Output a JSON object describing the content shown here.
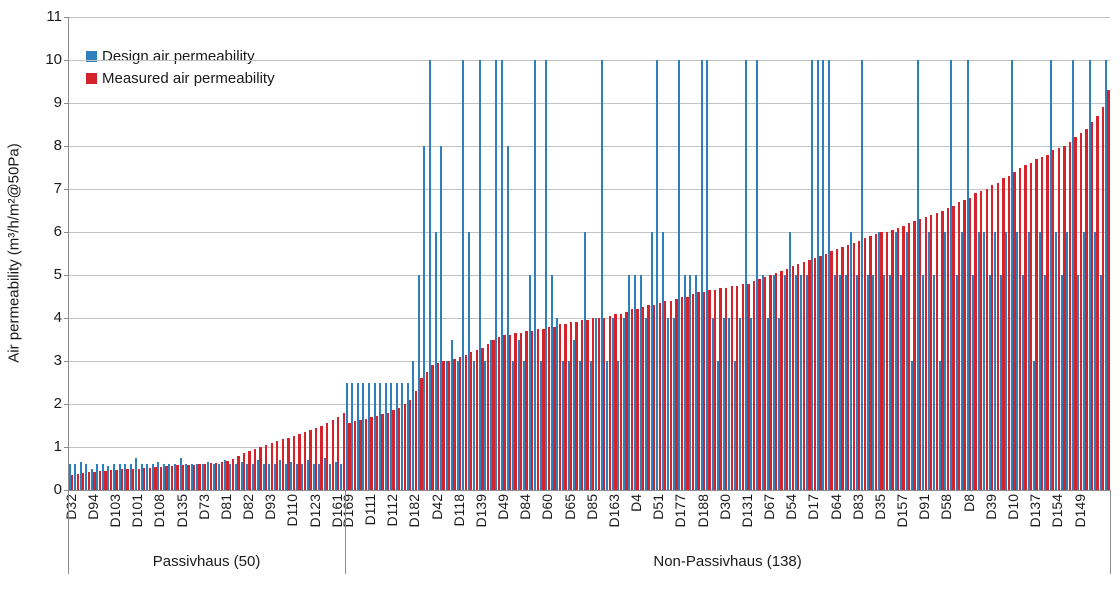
{
  "chart_data": {
    "type": "bar",
    "title": "",
    "ylabel": "Air permeability (m³/h/m²@50Pa)",
    "ylim": [
      0,
      11
    ],
    "yticks": [
      0,
      1,
      2,
      3,
      4,
      5,
      6,
      7,
      8,
      9,
      10,
      11
    ],
    "grid": true,
    "label_every": 4,
    "legend_position": "top-left",
    "legend": [
      {
        "label": "Design air permeability",
        "color": "#2e80bd"
      },
      {
        "label": "Measured air permeability",
        "color": "#d5232b"
      }
    ],
    "colors": {
      "design": "#2e80bd",
      "measured": "#d5232b",
      "gridline": "#c3c3c3",
      "axis": "#8c8c8c",
      "text": "#1a1a1a"
    },
    "groups": [
      {
        "name": "Passivhaus (50)",
        "tick_labels": [
          "D32",
          "D94",
          "D103",
          "D101",
          "D108",
          "D135",
          "D73",
          "D81",
          "D82",
          "D93",
          "D110",
          "D123",
          "D161"
        ],
        "design": [
          0.6,
          0.6,
          0.65,
          0.6,
          0.5,
          0.6,
          0.6,
          0.55,
          0.6,
          0.6,
          0.6,
          0.6,
          0.75,
          0.6,
          0.6,
          0.6,
          0.65,
          0.6,
          0.6,
          0.6,
          0.75,
          0.6,
          0.6,
          0.6,
          0.6,
          0.65,
          0.6,
          0.6,
          0.7,
          0.6,
          0.6,
          0.65,
          0.6,
          0.6,
          0.7,
          0.6,
          0.6,
          0.6,
          0.7,
          0.6,
          0.65,
          0.6,
          0.6,
          0.7,
          0.6,
          0.6,
          0.75,
          0.6,
          0.65,
          0.6
        ],
        "measured": [
          0.35,
          0.38,
          0.4,
          0.42,
          0.43,
          0.44,
          0.45,
          0.46,
          0.47,
          0.48,
          0.49,
          0.5,
          0.5,
          0.51,
          0.52,
          0.53,
          0.54,
          0.55,
          0.56,
          0.57,
          0.58,
          0.58,
          0.59,
          0.6,
          0.61,
          0.62,
          0.63,
          0.65,
          0.68,
          0.72,
          0.78,
          0.85,
          0.9,
          0.95,
          1.0,
          1.05,
          1.1,
          1.15,
          1.18,
          1.22,
          1.26,
          1.3,
          1.35,
          1.4,
          1.45,
          1.5,
          1.55,
          1.62,
          1.7,
          1.78
        ]
      },
      {
        "name": "Non-Passivhaus (138)",
        "tick_labels": [
          "D169",
          "D111",
          "D112",
          "D182",
          "D42",
          "D118",
          "D139",
          "D49",
          "D84",
          "D60",
          "D65",
          "D85",
          "D163",
          "D4",
          "D51",
          "D177",
          "D188",
          "D30",
          "D131",
          "D67",
          "D54",
          "D17",
          "D64",
          "D83",
          "D35",
          "D157",
          "D91",
          "D58",
          "D8",
          "D39",
          "D10",
          "D137",
          "D154",
          "D149"
        ],
        "design": [
          2.5,
          2.5,
          2.5,
          2.5,
          2.5,
          2.5,
          2.5,
          2.5,
          2.5,
          2.5,
          2.5,
          2.5,
          3,
          5,
          8,
          10,
          6,
          8,
          3,
          3.5,
          3,
          10,
          6,
          3,
          10,
          3,
          3.5,
          10,
          10,
          8,
          3,
          3.5,
          3,
          5,
          10,
          3,
          10,
          5,
          4,
          3,
          3,
          3.5,
          3,
          6,
          3,
          4,
          10,
          3,
          4,
          3,
          4,
          5,
          5,
          5,
          4,
          6,
          10,
          6,
          4,
          4,
          10,
          5,
          5,
          5,
          10,
          10,
          4,
          3,
          4,
          4,
          3,
          4,
          10,
          4,
          10,
          5,
          4,
          5,
          4,
          5,
          6,
          5,
          5,
          5,
          10,
          10,
          10,
          10,
          5,
          5,
          5,
          6,
          5,
          10,
          5,
          5,
          6,
          5,
          5,
          6,
          5,
          6,
          3,
          10,
          5,
          6,
          5,
          3,
          6,
          10,
          5,
          6,
          10,
          5,
          6,
          6,
          5,
          6,
          5,
          6,
          10,
          6,
          5,
          6,
          3,
          6,
          5,
          10,
          6,
          5,
          6,
          10,
          5,
          6,
          10,
          6,
          5,
          10
        ],
        "measured": [
          1.55,
          1.6,
          1.63,
          1.66,
          1.7,
          1.73,
          1.76,
          1.8,
          1.85,
          1.9,
          2.0,
          2.1,
          2.3,
          2.6,
          2.75,
          2.9,
          2.95,
          3.0,
          3.0,
          3.05,
          3.1,
          3.15,
          3.2,
          3.25,
          3.3,
          3.4,
          3.5,
          3.55,
          3.6,
          3.6,
          3.65,
          3.65,
          3.7,
          3.7,
          3.75,
          3.75,
          3.8,
          3.8,
          3.85,
          3.85,
          3.9,
          3.9,
          3.95,
          3.95,
          4.0,
          4.0,
          4.0,
          4.05,
          4.1,
          4.1,
          4.15,
          4.2,
          4.2,
          4.25,
          4.3,
          4.3,
          4.35,
          4.4,
          4.4,
          4.45,
          4.5,
          4.5,
          4.55,
          4.6,
          4.6,
          4.65,
          4.65,
          4.7,
          4.7,
          4.75,
          4.75,
          4.8,
          4.8,
          4.85,
          4.9,
          4.95,
          5.0,
          5.05,
          5.1,
          5.15,
          5.2,
          5.25,
          5.3,
          5.35,
          5.4,
          5.45,
          5.5,
          5.55,
          5.6,
          5.65,
          5.7,
          5.75,
          5.8,
          5.85,
          5.9,
          5.95,
          6.0,
          6.0,
          6.05,
          6.1,
          6.15,
          6.2,
          6.25,
          6.3,
          6.35,
          6.4,
          6.45,
          6.5,
          6.55,
          6.6,
          6.7,
          6.75,
          6.8,
          6.9,
          6.95,
          7.0,
          7.1,
          7.15,
          7.25,
          7.3,
          7.4,
          7.5,
          7.55,
          7.6,
          7.7,
          7.75,
          7.8,
          7.9,
          7.95,
          8.0,
          8.1,
          8.2,
          8.3,
          8.4,
          8.55,
          8.7,
          8.9,
          9.3
        ]
      }
    ]
  }
}
